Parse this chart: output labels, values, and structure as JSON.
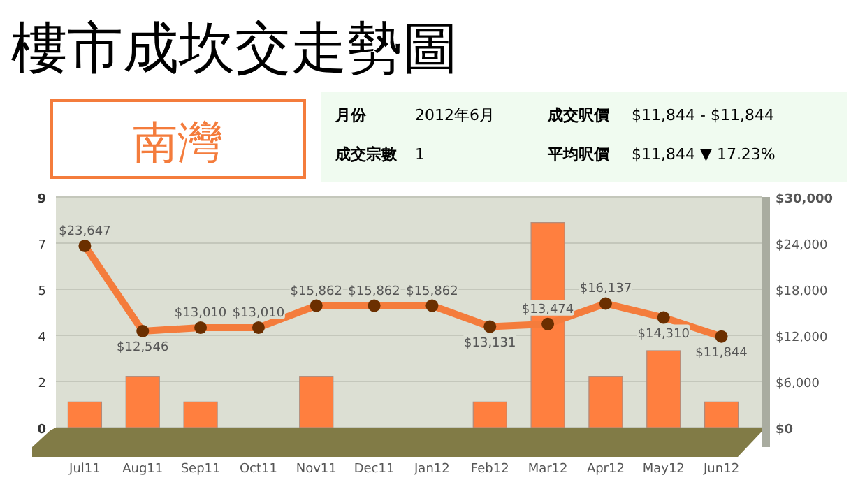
{
  "chart_data": {
    "type": "bar",
    "title": "樓市成坎交走勢圖",
    "subtitle": "南灣",
    "annotations": [
      "月份",
      "2012年6月",
      "成交呎價",
      "$11,844 - $11,844",
      "成交宗數",
      "1",
      "平均呎價",
      "$11,844 ▼ 17.23%"
    ],
    "categories": [
      "Jul11",
      "Aug11",
      "Sep11",
      "Oct11",
      "Nov11",
      "Dec11",
      "Jan12",
      "Feb12",
      "Mar12",
      "Apr12",
      "May12",
      "Jun12"
    ],
    "series": [
      {
        "color": "#ff7f3f",
        "values": [
          1,
          2,
          1,
          0,
          2,
          0,
          0,
          1,
          8,
          2,
          3,
          1
        ]
      },
      {
        "type": "line",
        "axis": "y2",
        "color": "#f47c3c",
        "values": [
          23647,
          12546,
          13010,
          13010,
          15862,
          15862,
          15862,
          13131,
          13474,
          16137,
          14310,
          11844
        ],
        "value_labels": [
          "$23,647",
          "$12,546",
          "$13,010",
          "$13,010",
          "$15,862",
          "$15,862",
          "$15,862",
          "$13,131",
          "$13,474",
          "$16,137",
          "$14,310",
          "$11,844"
        ]
      }
    ],
    "marker": "circle",
    "ylim": [
      0,
      9
    ],
    "yticks": [
      {
        "value": 0,
        "label": "0"
      },
      {
        "value": 1.8,
        "label": "2"
      },
      {
        "value": 3.6,
        "label": "4"
      },
      {
        "value": 5.4,
        "label": "5"
      },
      {
        "value": 7.2,
        "label": "7"
      },
      9
    ],
    "y2lim": [
      0,
      30000
    ],
    "y2ticks": [
      {
        "value": 0,
        "label": "$0"
      },
      {
        "value": 6000,
        "label": "$6,000"
      },
      {
        "value": 12000,
        "label": "$12,000"
      },
      {
        "value": 18000,
        "label": "$18,000"
      },
      {
        "value": 24000,
        "label": "$24,000"
      },
      {
        "value": 30000,
        "label": "$30,000"
      }
    ],
    "grid": "y"
  }
}
